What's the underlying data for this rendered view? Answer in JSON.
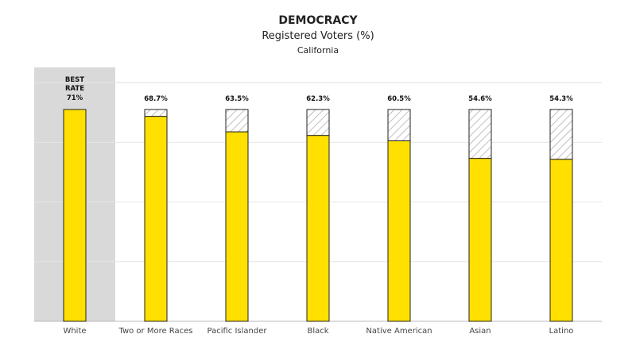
{
  "chart_data": {
    "type": "bar",
    "title": "DEMOCRACY",
    "subtitle": "Registered Voters (%)",
    "subtitle2": "California",
    "categories": [
      "White",
      "Two or More Races",
      "Pacific Islander",
      "Black",
      "Native American",
      "Asian",
      "Latino"
    ],
    "values": [
      71,
      68.7,
      63.5,
      62.3,
      60.5,
      54.6,
      54.3
    ],
    "value_labels": [
      "71%",
      "68.7%",
      "63.5%",
      "62.3%",
      "60.5%",
      "54.6%",
      "54.3%"
    ],
    "best": {
      "index": 0,
      "label_line1": "BEST",
      "label_line2": "RATE"
    },
    "benchmark": 71,
    "ylim": [
      0,
      100
    ],
    "gridlines": [
      20,
      40,
      60,
      80
    ],
    "grid": true,
    "colors": {
      "bar": "#FFE000",
      "highlight": "#d9d9d9",
      "hatch": "#aaaaaa",
      "outline": "#222222",
      "grid": "#e6e6e6"
    }
  }
}
